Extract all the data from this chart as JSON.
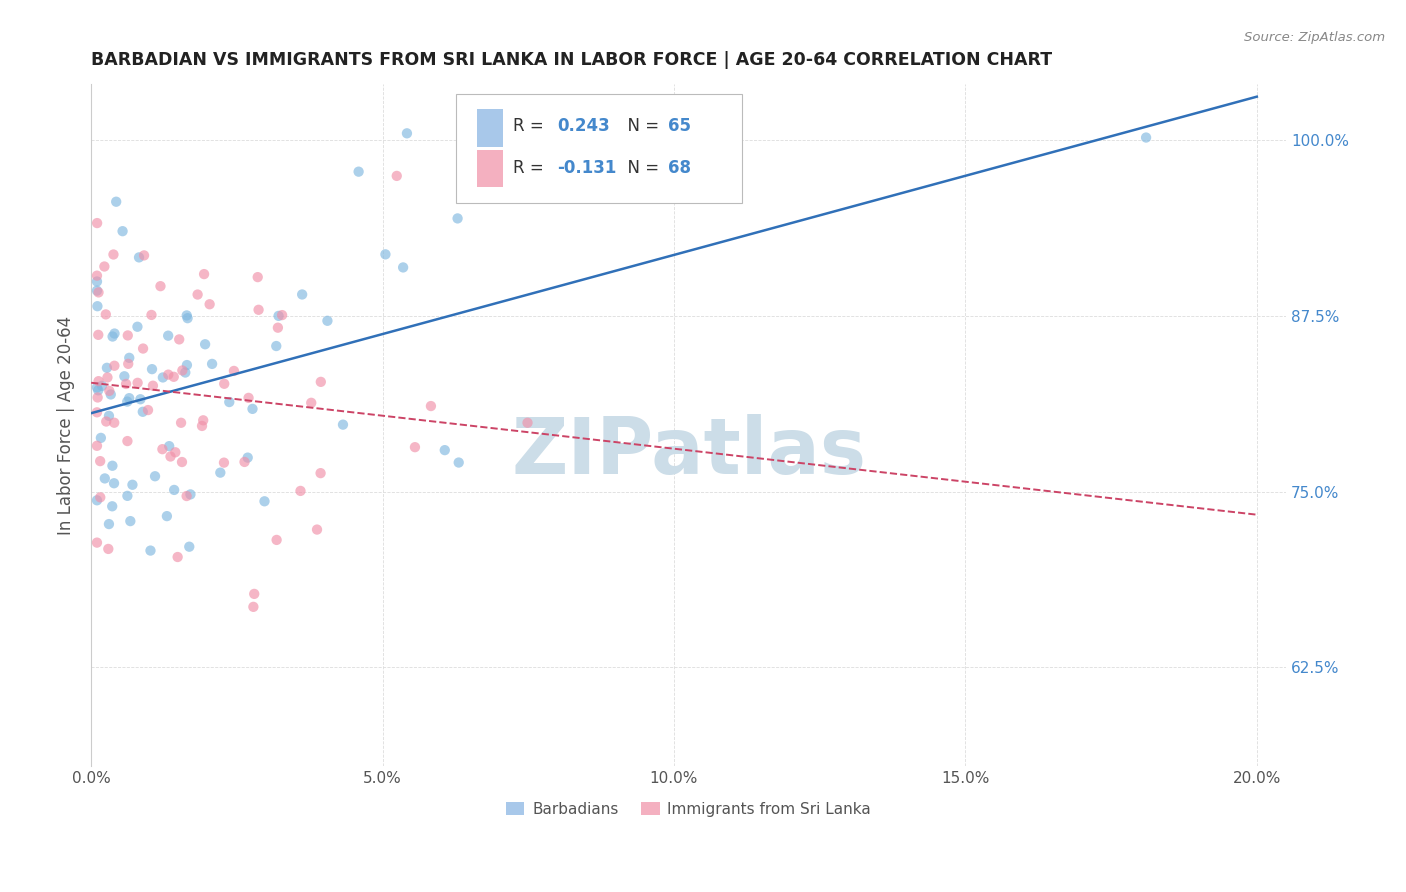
{
  "title": "BARBADIAN VS IMMIGRANTS FROM SRI LANKA IN LABOR FORCE | AGE 20-64 CORRELATION CHART",
  "source": "Source: ZipAtlas.com",
  "xlabel_values": [
    0.0,
    0.05,
    0.1,
    0.15,
    0.2
  ],
  "ylabel_values": [
    0.625,
    0.75,
    0.875,
    1.0
  ],
  "xlim": [
    0.0,
    0.205
  ],
  "ylim": [
    0.555,
    1.04
  ],
  "ylabel": "In Labor Force | Age 20-64",
  "legend_r1": "0.243",
  "legend_n1": "65",
  "legend_r2": "-0.131",
  "legend_n2": "68",
  "legend_color1": "#a8c8ea",
  "legend_color2": "#f4b0c0",
  "blue_line_color": "#3070b8",
  "pink_line_color": "#cc4466",
  "watermark_text": "ZIPatlas",
  "watermark_color": "#ccdde8",
  "dot_color_blue": "#80b8e0",
  "dot_color_pink": "#f090a8",
  "dot_alpha": 0.65,
  "dot_size": 55,
  "background_color": "#ffffff",
  "grid_color": "#dddddd",
  "title_color": "#222222",
  "source_color": "#888888",
  "tick_color": "#555555",
  "ylabel_color": "#555555",
  "right_tick_color": "#4488cc"
}
